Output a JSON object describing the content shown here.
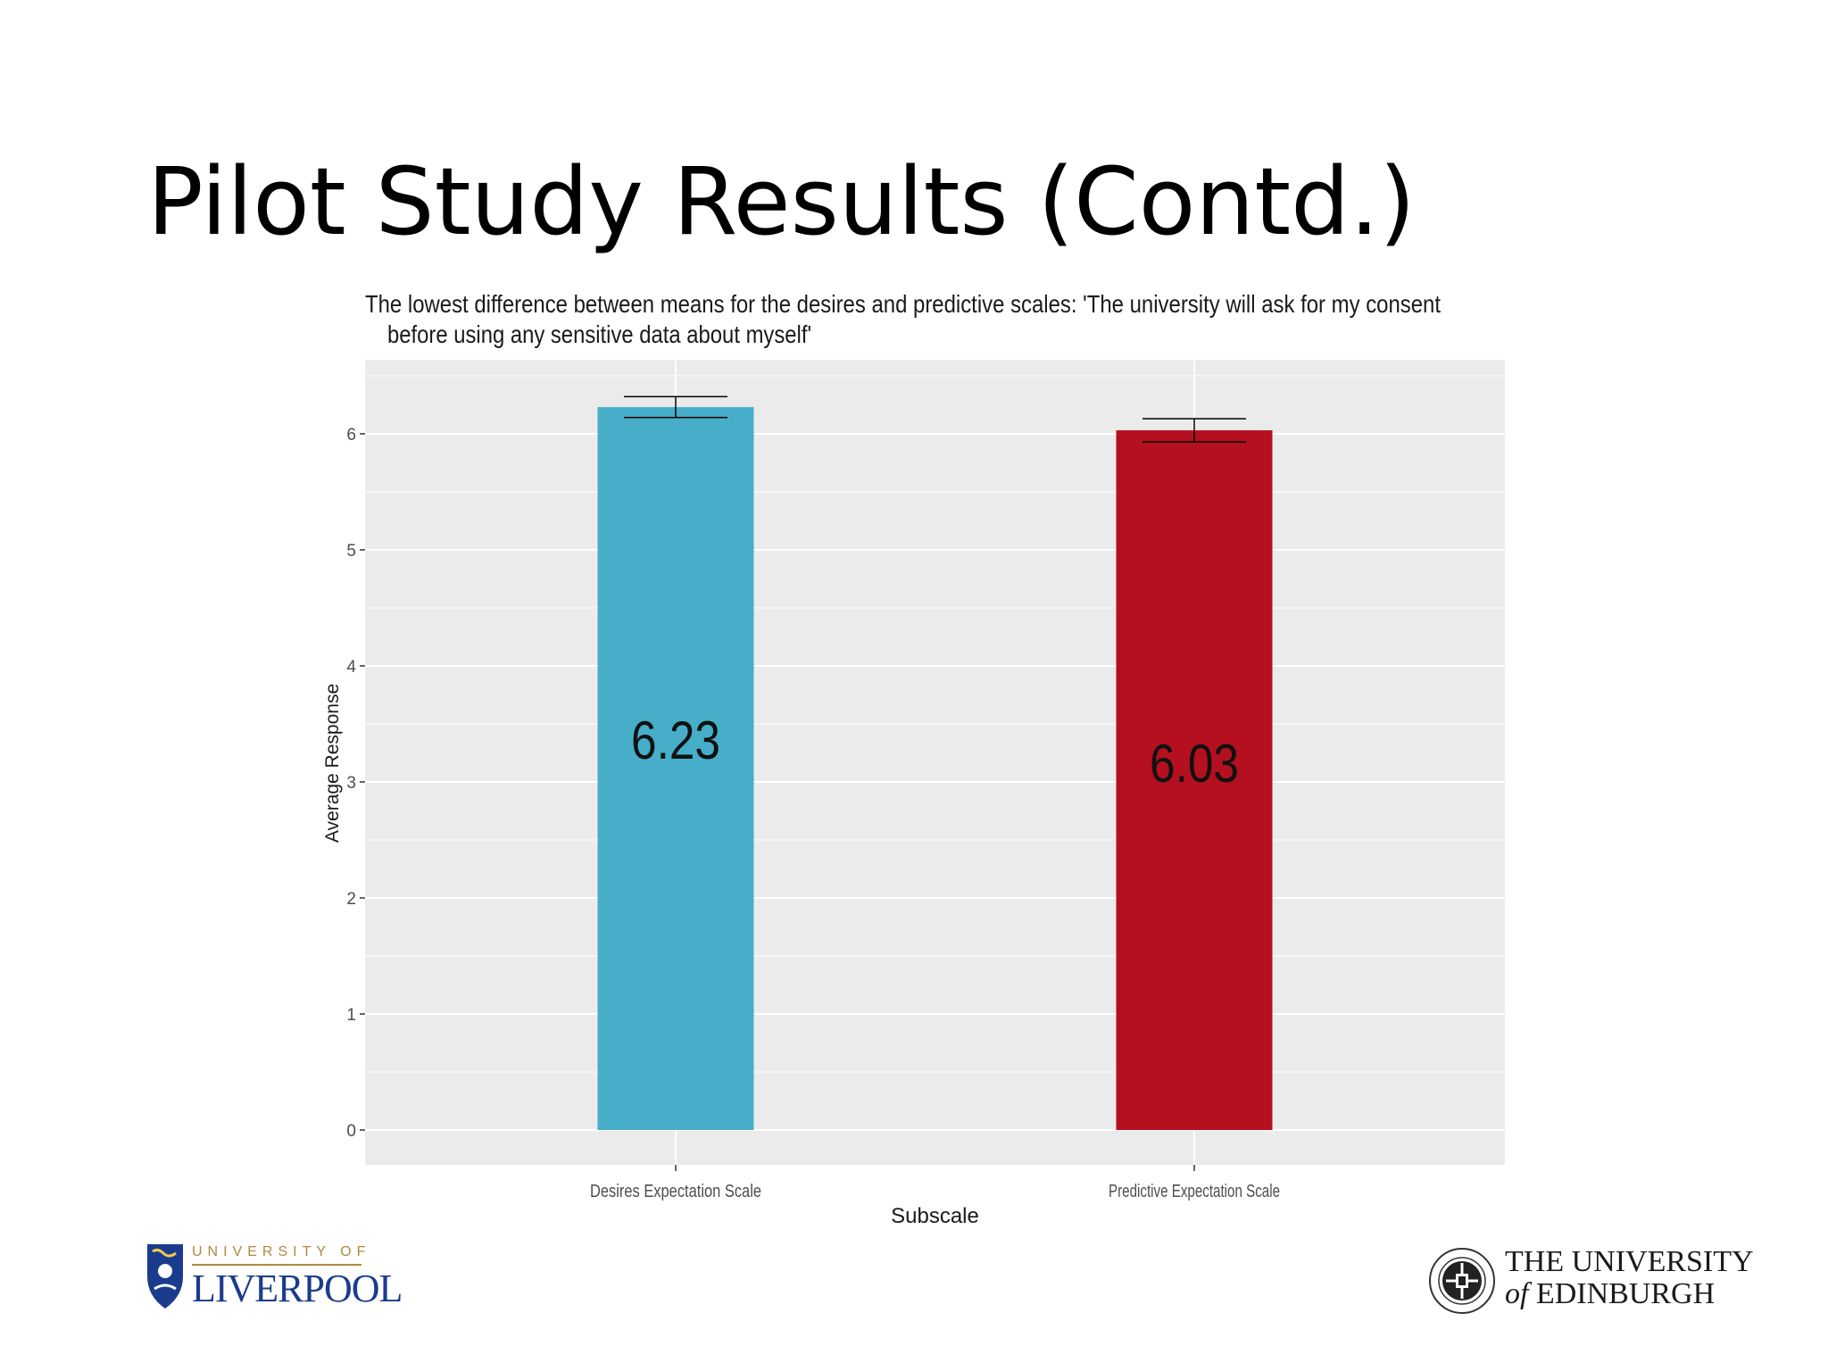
{
  "slide": {
    "title": "Pilot Study Results (Contd.)"
  },
  "chart_data": {
    "type": "bar",
    "title_lines": [
      "The lowest difference between means for the desires and predictive scales: 'The university will ask for my consent",
      "before using any sensitive data about myself'"
    ],
    "xlabel": "Subscale",
    "ylabel": "Average Response",
    "categories": [
      "Desires Expectation Scale",
      "Predictive Expectation Scale"
    ],
    "values": [
      6.23,
      6.03
    ],
    "value_labels": [
      "6.23",
      "6.03"
    ],
    "error_bars": [
      [
        6.14,
        6.32
      ],
      [
        5.93,
        6.13
      ]
    ],
    "colors": [
      "#46aec8",
      "#b41020"
    ],
    "ylim": [
      0,
      6.55
    ],
    "yticks": [
      0,
      1,
      2,
      3,
      4,
      5,
      6
    ],
    "grid": true,
    "panel_background": "#ebebeb"
  },
  "logos": {
    "liverpool": {
      "top_text": "UNIVERSITY OF",
      "main_text": "LIVERPOOL"
    },
    "edinburgh": {
      "line1": "THE UNIVERSITY",
      "line2_italic": "of",
      "line2_rest": " EDINBURGH"
    }
  }
}
